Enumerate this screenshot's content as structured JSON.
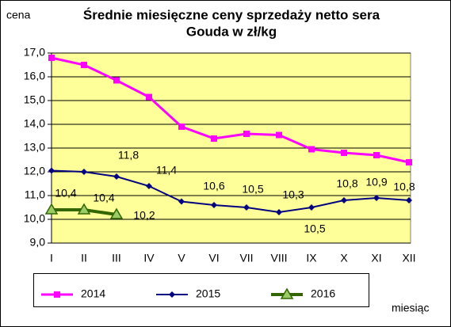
{
  "chart_data": {
    "type": "line",
    "title": [
      "Średnie miesięczne ceny sprzedaży netto sera",
      "Gouda w zł/kg"
    ],
    "y_label": "cena",
    "x_label": "miesiąc",
    "categories": [
      "I",
      "II",
      "III",
      "IV",
      "V",
      "VI",
      "VII",
      "VIII",
      "IX",
      "X",
      "XI",
      "XII"
    ],
    "series": [
      {
        "name": "2014",
        "color": "#ff00ff",
        "marker": "square",
        "values": [
          16.8,
          16.5,
          15.85,
          15.15,
          13.9,
          13.4,
          13.6,
          13.55,
          12.95,
          12.8,
          12.7,
          12.4
        ]
      },
      {
        "name": "2015",
        "color": "#000080",
        "marker": "diamond",
        "values": [
          12.05,
          12.0,
          11.8,
          11.4,
          10.75,
          10.6,
          10.5,
          10.3,
          10.5,
          10.8,
          10.9,
          10.8
        ],
        "value_labels": [
          null,
          null,
          "11,8",
          "11,4",
          null,
          "10,6",
          "10,5",
          "10,3",
          "10,5",
          "10,8",
          "10,9",
          "10,8"
        ]
      },
      {
        "name": "2016",
        "color": "#336600",
        "marker": "triangle",
        "values": [
          10.4,
          10.4,
          10.2,
          null,
          null,
          null,
          null,
          null,
          null,
          null,
          null,
          null
        ],
        "value_labels": [
          "10,4",
          "10,4",
          "10,2",
          null,
          null,
          null,
          null,
          null,
          null,
          null,
          null,
          null
        ]
      }
    ],
    "ylim": [
      9,
      17
    ],
    "yticks": [
      {
        "value": 9,
        "label": "9,0"
      },
      {
        "value": 10,
        "label": "10,0"
      },
      {
        "value": 11,
        "label": "11,0"
      },
      {
        "value": 12,
        "label": "12,0"
      },
      {
        "value": 13,
        "label": "13,0"
      },
      {
        "value": 14,
        "label": "14,0"
      },
      {
        "value": 15,
        "label": "15,0"
      },
      {
        "value": 16,
        "label": "16,0"
      },
      {
        "value": 17,
        "label": "17,0"
      }
    ],
    "grid": true,
    "plot_background": "#ffff99",
    "legend": "bottom"
  }
}
